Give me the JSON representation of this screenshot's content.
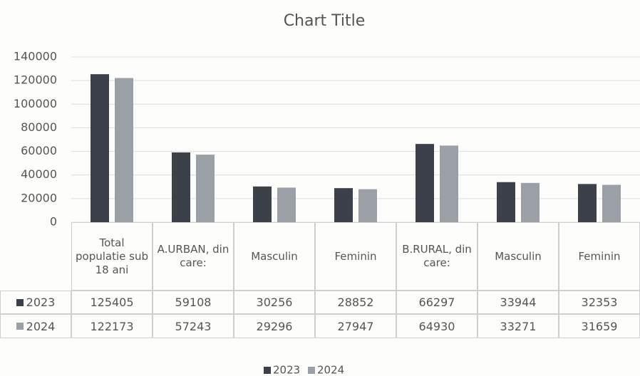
{
  "chart_data": {
    "type": "bar",
    "title": "Chart Title",
    "categories": [
      "Total populatie sub 18 ani",
      "A.URBAN, din care:",
      "Masculin",
      "Feminin",
      "B.RURAL, din care:",
      "Masculin",
      "Feminin"
    ],
    "series": [
      {
        "name": "2023",
        "color": "#3c4149",
        "values": [
          125405,
          59108,
          30256,
          28852,
          66297,
          33944,
          32353
        ]
      },
      {
        "name": "2024",
        "color": "#9aa0a6",
        "values": [
          122173,
          57243,
          29296,
          27947,
          64930,
          33271,
          31659
        ]
      }
    ],
    "ylim": [
      0,
      140000
    ],
    "yticks": [
      0,
      20000,
      40000,
      60000,
      80000,
      100000,
      120000,
      140000
    ],
    "grid": true,
    "legend": "bottom"
  }
}
